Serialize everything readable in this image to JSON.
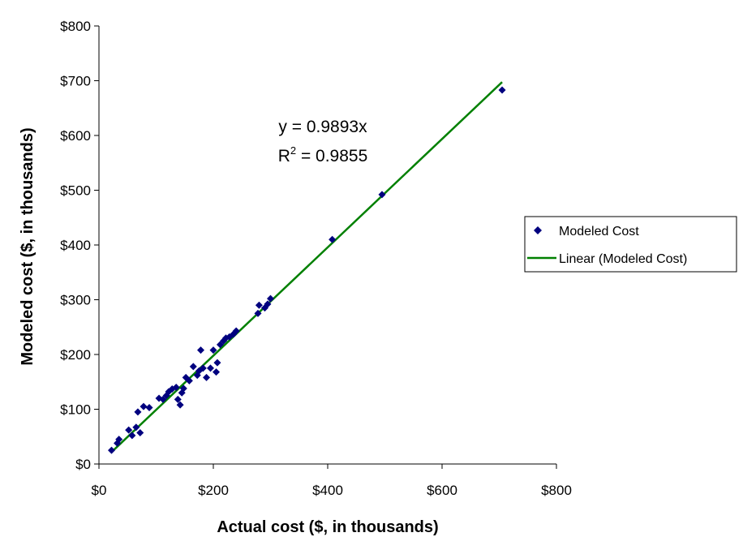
{
  "chart_data": {
    "type": "scatter",
    "xlabel": "Actual cost ($, in thousands)",
    "ylabel": "Modeled cost ($, in thousands)",
    "xlim": [
      0,
      800
    ],
    "ylim": [
      0,
      800
    ],
    "x_ticks": [
      "$0",
      "$200",
      "$400",
      "$600",
      "$800"
    ],
    "y_ticks": [
      "$0",
      "$100",
      "$200",
      "$300",
      "$400",
      "$500",
      "$600",
      "$700",
      "$800"
    ],
    "x_tick_values": [
      0,
      200,
      400,
      600,
      800
    ],
    "y_tick_values": [
      0,
      100,
      200,
      300,
      400,
      500,
      600,
      700,
      800
    ],
    "grid": false,
    "legend_position": "right",
    "series": [
      {
        "name": "Modeled Cost",
        "marker": "diamond",
        "color": "#00007f",
        "points": [
          [
            22,
            25
          ],
          [
            32,
            38
          ],
          [
            35,
            45
          ],
          [
            52,
            62
          ],
          [
            58,
            52
          ],
          [
            65,
            67
          ],
          [
            68,
            95
          ],
          [
            72,
            57
          ],
          [
            78,
            105
          ],
          [
            88,
            103
          ],
          [
            105,
            120
          ],
          [
            112,
            118
          ],
          [
            118,
            125
          ],
          [
            122,
            132
          ],
          [
            128,
            137
          ],
          [
            135,
            140
          ],
          [
            138,
            118
          ],
          [
            142,
            108
          ],
          [
            145,
            130
          ],
          [
            148,
            138
          ],
          [
            152,
            158
          ],
          [
            158,
            152
          ],
          [
            165,
            178
          ],
          [
            172,
            162
          ],
          [
            175,
            170
          ],
          [
            178,
            208
          ],
          [
            182,
            175
          ],
          [
            188,
            158
          ],
          [
            195,
            175
          ],
          [
            200,
            208
          ],
          [
            205,
            168
          ],
          [
            207,
            185
          ],
          [
            212,
            218
          ],
          [
            218,
            225
          ],
          [
            222,
            230
          ],
          [
            228,
            232
          ],
          [
            235,
            237
          ],
          [
            240,
            243
          ],
          [
            278,
            275
          ],
          [
            280,
            290
          ],
          [
            290,
            285
          ],
          [
            295,
            292
          ],
          [
            300,
            302
          ],
          [
            408,
            410
          ],
          [
            495,
            492
          ],
          [
            705,
            683
          ]
        ]
      },
      {
        "name": "Linear (Modeled Cost)",
        "type": "line",
        "color": "#008000",
        "slope": 0.9893,
        "x_range": [
          22,
          705
        ]
      }
    ],
    "annotations": {
      "equation": "y = 0.9893x",
      "r2_prefix": "R",
      "r2_superscript": "2",
      "r2_value": " = 0.9855"
    }
  }
}
